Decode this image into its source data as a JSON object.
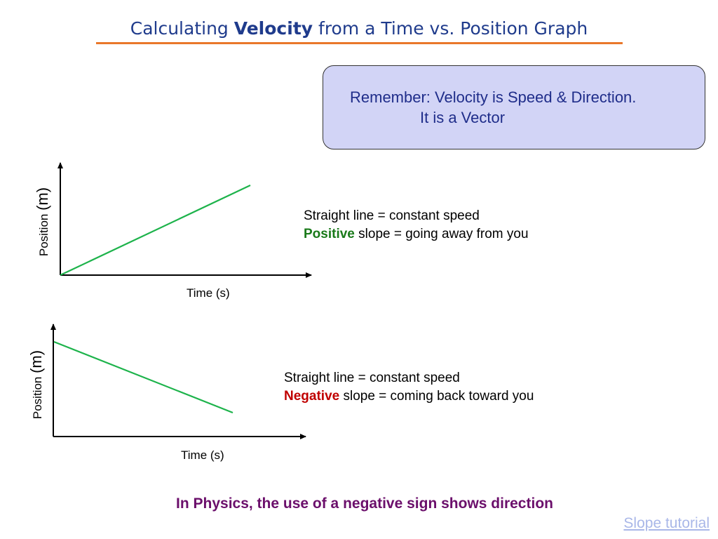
{
  "title": {
    "prefix": "Calculating ",
    "bold": "Velocity",
    "suffix": " from a Time vs. Position Graph"
  },
  "remember_box": {
    "line1": "Remember:   Velocity is Speed & Direction.",
    "line2": "It is a Vector"
  },
  "graph1": {
    "ylabel_word": "Position",
    "ylabel_unit": "(m)",
    "xlabel": "Time (s)",
    "line_color": "#1db34b",
    "desc_line1": "Straight line = constant speed",
    "desc_emph": "Positive",
    "desc_rest": " slope = going away from you",
    "emph_color": "#1a7a1a"
  },
  "graph2": {
    "ylabel_word": "Position",
    "ylabel_unit": "(m)",
    "xlabel": "Time (s)",
    "line_color": "#1db34b",
    "desc_line1": "Straight line = constant speed",
    "desc_emph": "Negative",
    "desc_rest": " slope = coming back toward you",
    "emph_color": "#c00000"
  },
  "footer": "In Physics, the use of a negative sign shows direction",
  "link": "Slope tutorial",
  "colors": {
    "title": "#1f3b8c",
    "accent_rule": "#e9772a",
    "box_fill": "#d2d4f6",
    "footer": "#6b0f6b",
    "link": "#a9b7e8"
  }
}
